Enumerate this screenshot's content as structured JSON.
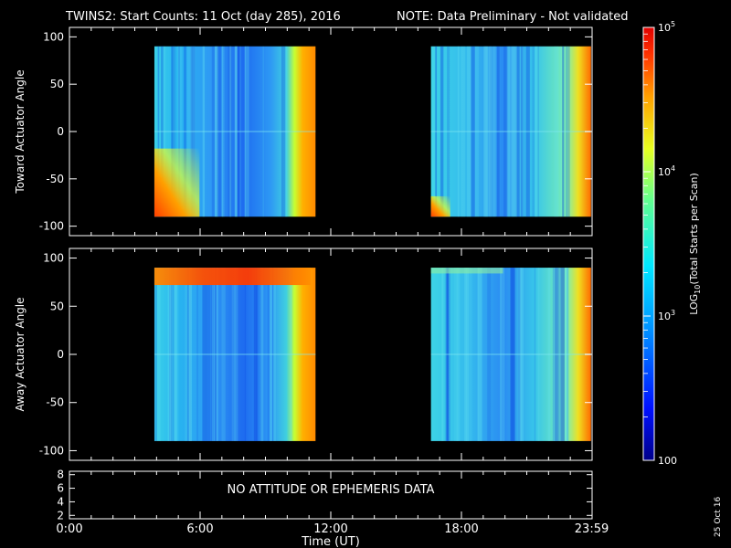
{
  "title": {
    "main": "TWINS2: Start Counts: 11 Oct (day 285), 2016",
    "note": "NOTE: Data Preliminary - Not validated",
    "note_color": "#ff2020"
  },
  "colorbar": {
    "label": "LOG10(Total Starts per Scan)",
    "label_prefix": "LOG",
    "label_sub": "10",
    "label_suffix": "(Total Starts per Scan)",
    "scale": "log",
    "range": [
      100,
      100000
    ],
    "ticks": [
      {
        "value": 100,
        "label": "100"
      },
      {
        "value": 1000,
        "label": "10",
        "sup": "3"
      },
      {
        "value": 10000,
        "label": "10",
        "sup": "4"
      },
      {
        "value": 100000,
        "label": "10",
        "sup": "5"
      }
    ]
  },
  "date_stamp": "25 Oct 16",
  "chart_data": [
    {
      "type": "heatmap",
      "panel": "toward",
      "ylabel": "Toward Actuator Angle",
      "ylim": [
        -110,
        110
      ],
      "yticks": [
        "100",
        "50",
        "0",
        "-50",
        "-100"
      ],
      "xlim": [
        0,
        24
      ],
      "angle_range": [
        -90,
        90
      ],
      "data_segments": [
        {
          "start_hr": 3.9,
          "end_hr": 11.3
        },
        {
          "start_hr": 16.6,
          "end_hr": 23.95
        }
      ],
      "approx_log_counts": "mostly 10^3 (cyan/blue) in midday, rising to ~10^5 (red) near 11:00 and 24:00 edges; enhanced counts near -90 deg after 04:00"
    },
    {
      "type": "heatmap",
      "panel": "away",
      "ylabel": "Away Actuator Angle",
      "ylim": [
        -110,
        110
      ],
      "yticks": [
        "100",
        "50",
        "0",
        "-50",
        "-100"
      ],
      "xlim": [
        0,
        24
      ],
      "angle_range": [
        -90,
        90
      ],
      "data_segments": [
        {
          "start_hr": 3.9,
          "end_hr": 11.3
        },
        {
          "start_hr": 16.6,
          "end_hr": 23.95
        }
      ],
      "approx_log_counts": "mostly 10^3 (cyan/blue); band near +80 deg reaching ~10^5 (red/orange) between 04:00 and 11:00; minima ~200 around 09:00"
    },
    {
      "type": "line",
      "panel": "attitude",
      "yticks": [
        "8",
        "6",
        "4",
        "2"
      ],
      "ylim": [
        1.5,
        8.5
      ],
      "message": "NO ATTITUDE OR EPHEMERIS DATA",
      "xlabel": "Time (UT)",
      "xticks": [
        "0:00",
        "6:00",
        "12:00",
        "18:00",
        "23:59"
      ],
      "xtick_values": [
        0,
        6,
        12,
        18,
        23.98
      ]
    }
  ]
}
